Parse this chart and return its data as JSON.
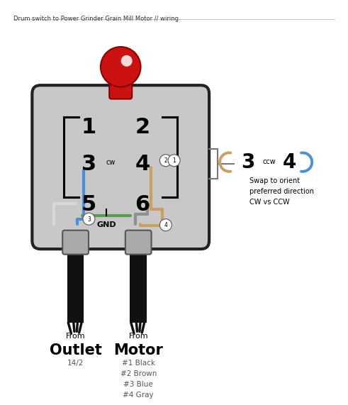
{
  "title": "Drum switch to Power Grinder Grain Mill Motor // wiring",
  "bg_color": "#ffffff",
  "box_color": "#c8c8c8",
  "gnd_label": "GND",
  "outlet_from": "From",
  "outlet_label": "Outlet",
  "outlet_sub": "14/2",
  "motor_from": "From",
  "motor_label": "Motor",
  "motor_sub": "#1 Black\n#2 Brown\n#3 Blue\n#4 Gray",
  "swap_text": "Swap to orient\npreferred direction\nCW vs CCW",
  "wire_blue": "#4a90d9",
  "wire_tan": "#c8a060",
  "wire_white": "#d8d8d8",
  "wire_green": "#5a9a50",
  "wire_gray": "#909090",
  "knob_red": "#cc1111",
  "knob_dark": "#880000",
  "knob_highlight": "#ffffff"
}
